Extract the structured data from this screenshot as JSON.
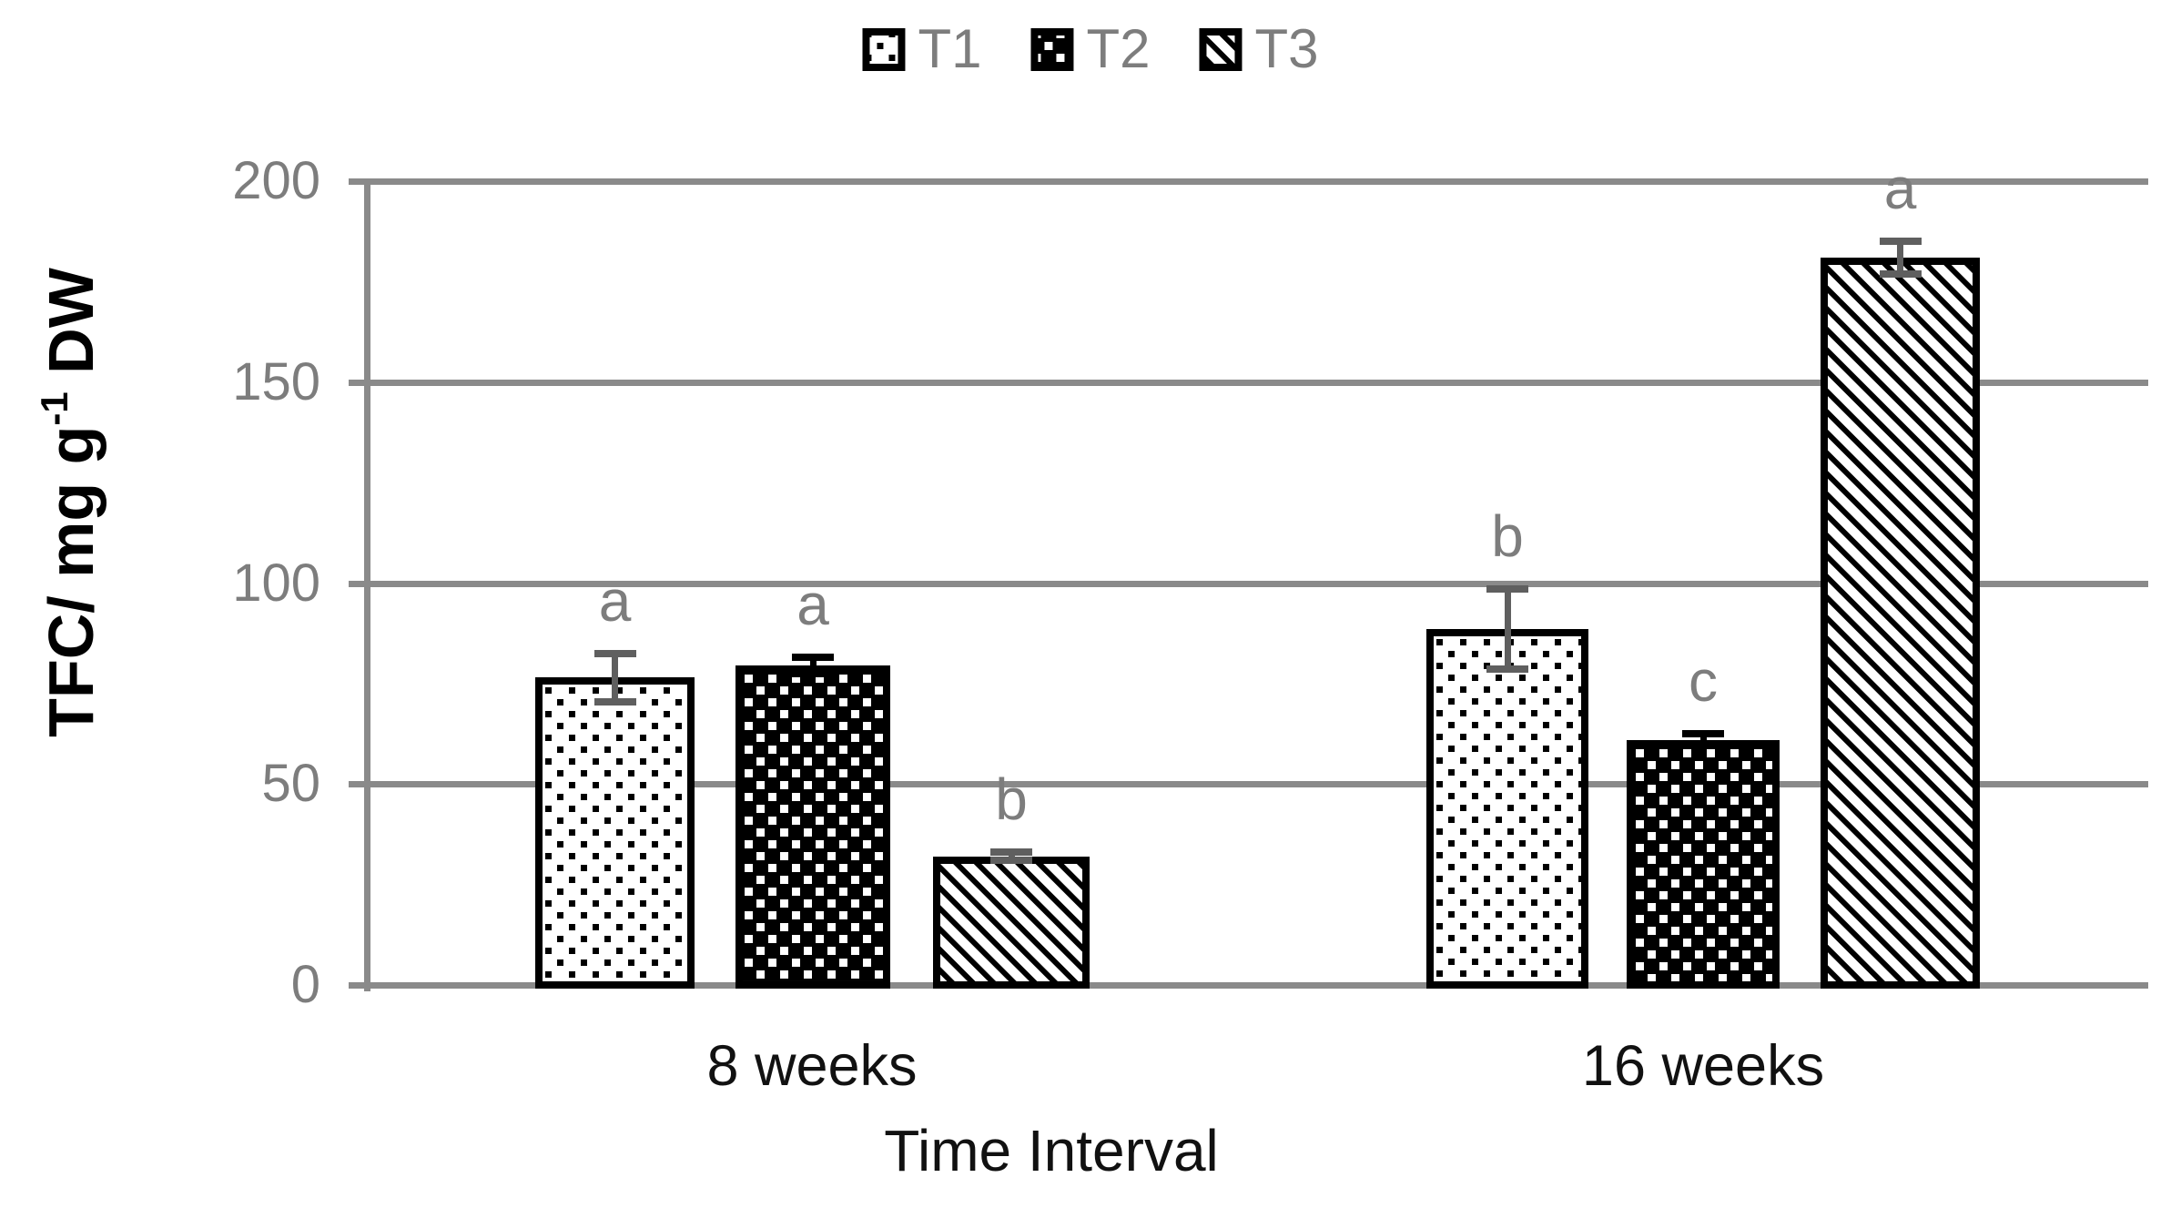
{
  "chart_data": {
    "type": "bar",
    "title": "",
    "categories": [
      "8 weeks",
      "16 weeks"
    ],
    "series": [
      {
        "name": "T1",
        "pattern": "small-black-dots-on-white",
        "values": [
          76.5,
          88.5
        ],
        "errors": [
          6,
          10
        ],
        "sig_letters": [
          "a",
          "b"
        ]
      },
      {
        "name": "T2",
        "pattern": "small-white-dots-on-black",
        "values": [
          79.5,
          61
        ],
        "errors": [
          2,
          1.5
        ],
        "sig_letters": [
          "a",
          "c"
        ]
      },
      {
        "name": "T3",
        "pattern": "black-diagonal-hatch-on-white",
        "values": [
          32,
          181
        ],
        "errors": [
          1,
          4
        ],
        "sig_letters": [
          "b",
          "a"
        ]
      }
    ],
    "xlabel": "Time Interval",
    "ylabel": "TFC/ mg g⁻¹ DW",
    "ylabel_parts": {
      "base": "TFC/ mg g",
      "sup": "-1",
      "suffix": " DW"
    },
    "ylim": [
      0,
      200
    ],
    "yticks": [
      0,
      50,
      100,
      150,
      200
    ],
    "grid": true,
    "legend_position": "top-center"
  },
  "colors": {
    "background": "#ffffff",
    "grid": "#8a8a8a",
    "axis": "#8a8a8a",
    "tick_label": "#7d7d7d",
    "legend_label": "#7d7d7d",
    "sig_letter": "#7d7d7d",
    "category_label": "#111111",
    "axis_title": "#000000",
    "bar_border": "#000000",
    "error_colors": [
      "#5f5f5f",
      "#000000",
      "#5f5f5f"
    ]
  }
}
